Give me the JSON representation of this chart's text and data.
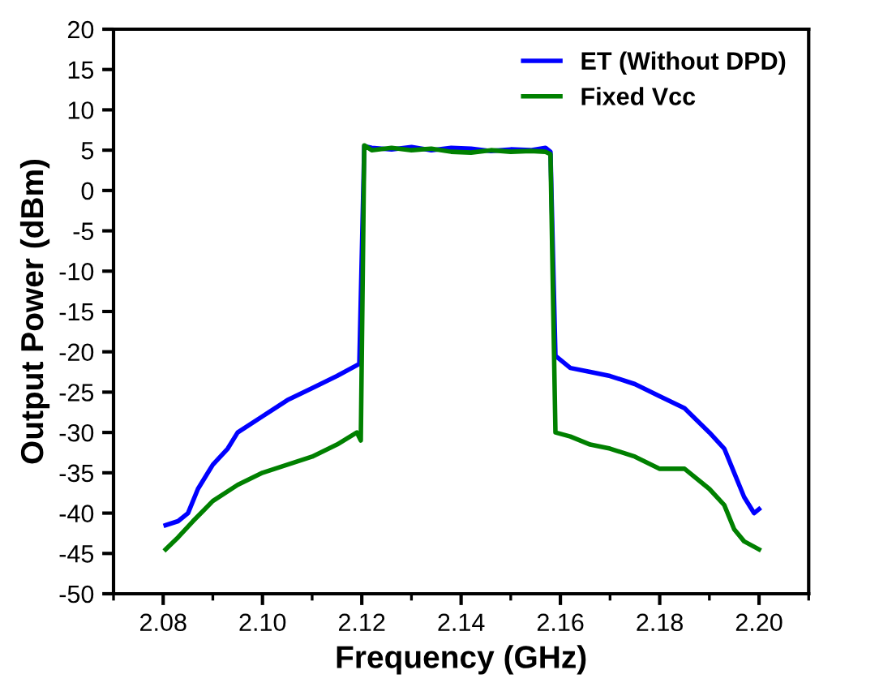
{
  "chart_data": {
    "type": "line",
    "xlabel": "Frequency (GHz)",
    "ylabel": "Output Power (dBm)",
    "xlim": [
      2.07,
      2.21
    ],
    "xticks": [
      {
        "value": 2.08,
        "label": "2.08"
      },
      {
        "value": 2.1,
        "label": "2.10"
      },
      {
        "value": 2.12,
        "label": "2.12"
      },
      {
        "value": 2.14,
        "label": "2.14"
      },
      {
        "value": 2.16,
        "label": "2.16"
      },
      {
        "value": 2.18,
        "label": "2.18"
      },
      {
        "value": 2.2,
        "label": "2.20"
      }
    ],
    "ylim": [
      -50,
      20
    ],
    "yticks": [
      -50,
      -45,
      -40,
      -35,
      -30,
      -25,
      -20,
      -15,
      -10,
      -5,
      0,
      5,
      10,
      15,
      20
    ],
    "grid": false,
    "legend": "top right",
    "marker": "none",
    "line_style": "solid",
    "series": [
      {
        "name": "ET (Without DPD)",
        "color": "#0000ff",
        "x": [
          2.0805,
          2.083,
          2.085,
          2.087,
          2.09,
          2.093,
          2.095,
          2.1,
          2.105,
          2.11,
          2.115,
          2.1195,
          2.1205,
          2.122,
          2.126,
          2.13,
          2.134,
          2.138,
          2.142,
          2.146,
          2.15,
          2.154,
          2.157,
          2.158,
          2.159,
          2.162,
          2.166,
          2.17,
          2.175,
          2.18,
          2.185,
          2.19,
          2.193,
          2.195,
          2.197,
          2.199,
          2.2
        ],
        "values": [
          -41.5,
          -41,
          -40,
          -37,
          -34,
          -32,
          -30,
          -28,
          -26,
          -24.5,
          -23,
          -21.5,
          5.5,
          5.3,
          5.1,
          5.4,
          5.0,
          5.3,
          5.2,
          4.9,
          5.1,
          5.0,
          5.3,
          4.8,
          -20.5,
          -22,
          -22.5,
          -23,
          -24,
          -25.5,
          -27,
          -30,
          -32,
          -35,
          -38,
          -40,
          -39.5
        ]
      },
      {
        "name": "Fixed Vcc",
        "color": "#008000",
        "x": [
          2.0805,
          2.083,
          2.086,
          2.09,
          2.095,
          2.1,
          2.105,
          2.11,
          2.115,
          2.119,
          2.1198,
          2.1205,
          2.122,
          2.126,
          2.13,
          2.134,
          2.138,
          2.142,
          2.146,
          2.15,
          2.154,
          2.157,
          2.158,
          2.159,
          2.162,
          2.166,
          2.17,
          2.175,
          2.18,
          2.185,
          2.19,
          2.193,
          2.195,
          2.197,
          2.2
        ],
        "values": [
          -44.5,
          -43,
          -41,
          -38.5,
          -36.5,
          -35,
          -34,
          -33,
          -31.5,
          -30,
          -31,
          5.6,
          5.0,
          5.3,
          5.0,
          5.2,
          4.8,
          4.7,
          5.0,
          4.8,
          4.9,
          4.8,
          4.5,
          -30,
          -30.5,
          -31.5,
          -32,
          -33,
          -34.5,
          -34.5,
          -37,
          -39,
          -42,
          -43.5,
          -44.5
        ]
      }
    ]
  }
}
